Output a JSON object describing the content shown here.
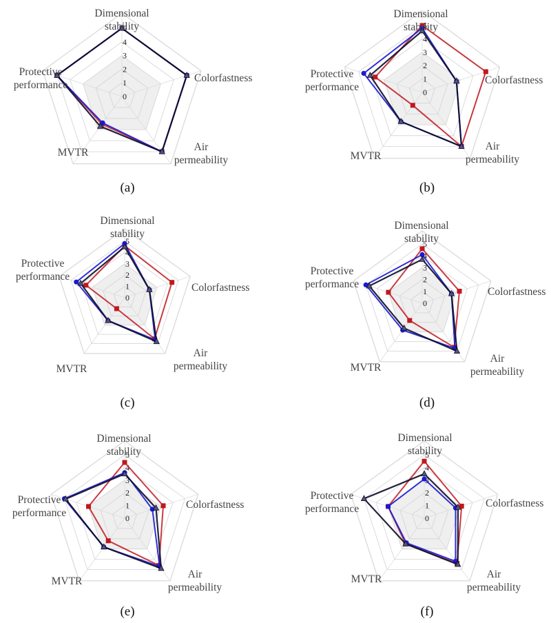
{
  "figure": {
    "axes": [
      "Dimensional stability",
      "Colorfastness",
      "Air permeability",
      "MVTR",
      "Protective performance"
    ],
    "tick_labels": [
      "0",
      "1",
      "2",
      "3",
      "4",
      "5"
    ]
  },
  "chart_data": [
    {
      "type": "radar",
      "panel_label": "(a)",
      "axes": [
        "Dimensional stability",
        "Colorfastness",
        "Air permeability",
        "MVTR",
        "Protective performance"
      ],
      "rmax": 5,
      "ticks": [
        0,
        1,
        2,
        3,
        4,
        5
      ],
      "series": [
        {
          "name": "series-red",
          "color": "#c0181e",
          "values": [
            5,
            5,
            5,
            2.5,
            5
          ]
        },
        {
          "name": "series-blue",
          "color": "#1a1ad0",
          "values": [
            5,
            5,
            5,
            2.4,
            5
          ]
        },
        {
          "name": "series-black",
          "color": "#0c0c2a",
          "values": [
            5,
            5,
            5,
            2.7,
            5
          ]
        }
      ]
    },
    {
      "type": "radar",
      "panel_label": "(b)",
      "axes": [
        "Dimensional stability",
        "Colorfastness",
        "Air permeability",
        "MVTR",
        "Protective performance"
      ],
      "rmax": 5,
      "ticks": [
        0,
        1,
        2,
        3,
        4,
        5
      ],
      "series": [
        {
          "name": "series-red",
          "color": "#c0181e",
          "values": [
            5,
            5,
            5,
            1.2,
            3.7
          ]
        },
        {
          "name": "series-blue",
          "color": "#1a1ad0",
          "values": [
            4.8,
            2.7,
            5,
            2.7,
            4.6
          ]
        },
        {
          "name": "series-black",
          "color": "#0c0c2a",
          "values": [
            4.6,
            2.7,
            5,
            2.7,
            4.1
          ]
        }
      ]
    },
    {
      "type": "radar",
      "panel_label": "(c)",
      "axes": [
        "Dimensional stability",
        "Colorfastness",
        "Air permeability",
        "MVTR",
        "Protective performance"
      ],
      "rmax": 5,
      "ticks": [
        0,
        1,
        2,
        3,
        4,
        5
      ],
      "series": [
        {
          "name": "series-red",
          "color": "#c0181e",
          "values": [
            4.6,
            4.4,
            4.5,
            1.2,
            3.6
          ]
        },
        {
          "name": "series-blue",
          "color": "#1a1ad0",
          "values": [
            4.8,
            2.3,
            4.6,
            2.5,
            4.5
          ]
        },
        {
          "name": "series-black",
          "color": "#0c0c2a",
          "values": [
            4.5,
            2.3,
            4.8,
            2.5,
            4.1
          ]
        }
      ]
    },
    {
      "type": "radar",
      "panel_label": "(d)",
      "axes": [
        "Dimensional stability",
        "Colorfastness",
        "Air permeability",
        "MVTR",
        "Protective performance"
      ],
      "rmax": 5,
      "ticks": [
        0,
        1,
        2,
        3,
        4,
        5
      ],
      "series": [
        {
          "name": "series-red",
          "color": "#c0181e",
          "values": [
            4.6,
            3.3,
            4.6,
            1.8,
            3
          ]
        },
        {
          "name": "series-blue",
          "color": "#1a1ad0",
          "values": [
            4.1,
            2.6,
            4.7,
            2.8,
            5
          ]
        },
        {
          "name": "series-black",
          "color": "#0c0c2a",
          "values": [
            3.7,
            2.6,
            5,
            2.6,
            4.7
          ]
        }
      ]
    },
    {
      "type": "radar",
      "panel_label": "(e)",
      "axes": [
        "Dimensional stability",
        "Colorfastness",
        "Air permeability",
        "MVTR",
        "Protective performance"
      ],
      "rmax": 5,
      "ticks": [
        0,
        1,
        2,
        3,
        4,
        5
      ],
      "series": [
        {
          "name": "series-red",
          "color": "#c0181e",
          "values": [
            4.4,
            3.2,
            4.6,
            2.2,
            3
          ]
        },
        {
          "name": "series-blue",
          "color": "#1a1ad0",
          "values": [
            3.6,
            2.3,
            4.7,
            2.8,
            5
          ]
        },
        {
          "name": "series-black",
          "color": "#0c0c2a",
          "values": [
            3.5,
            2.6,
            4.9,
            2.8,
            4.9
          ]
        }
      ]
    },
    {
      "type": "radar",
      "panel_label": "(f)",
      "axes": [
        "Dimensional stability",
        "Colorfastness",
        "Air permeability",
        "MVTR",
        "Protective performance"
      ],
      "rmax": 5,
      "ticks": [
        0,
        1,
        2,
        3,
        4,
        5
      ],
      "series": [
        {
          "name": "series-red",
          "color": "#c0181e",
          "values": [
            4.5,
            3.1,
            4.4,
            2.5,
            3
          ]
        },
        {
          "name": "series-blue",
          "color": "#1a1ad0",
          "values": [
            3.1,
            2.6,
            4.2,
            2.4,
            3
          ]
        },
        {
          "name": "series-black",
          "color": "#0c0c2a",
          "values": [
            3.5,
            2.8,
            4.5,
            2.5,
            5
          ]
        }
      ]
    }
  ]
}
